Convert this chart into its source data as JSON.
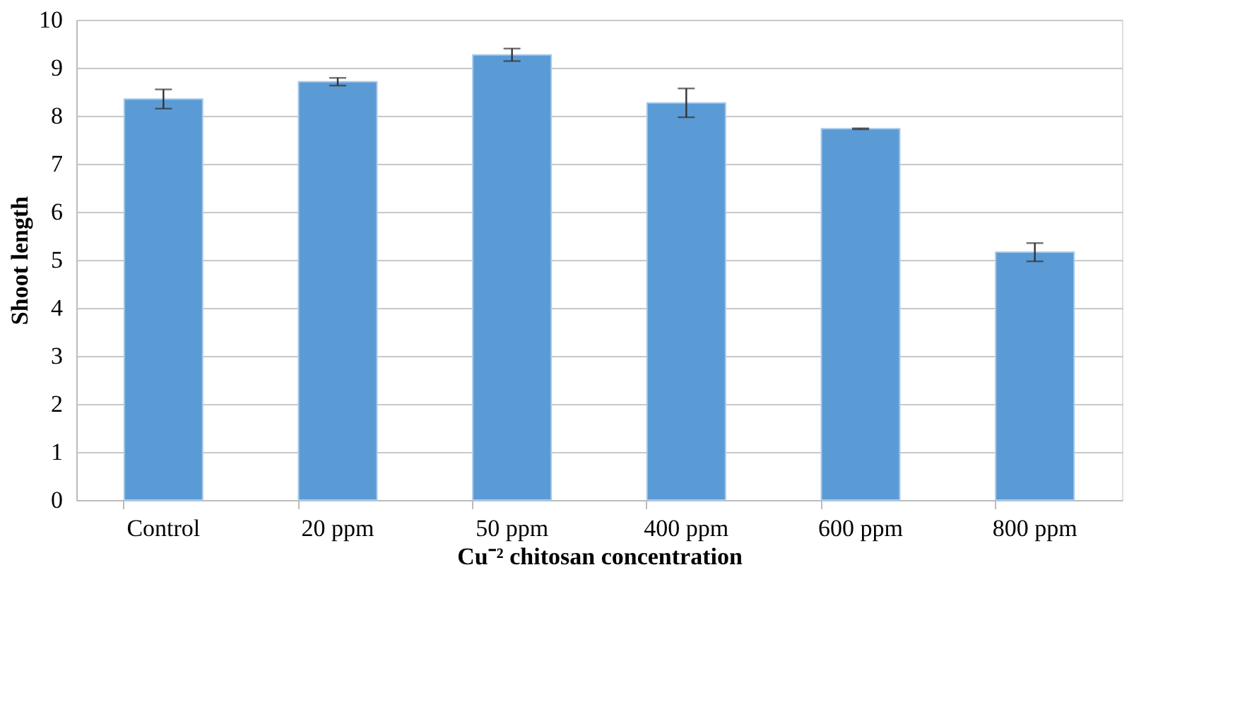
{
  "chart_data": {
    "type": "bar",
    "xlabel": "Cu⁻² chitosan concentration",
    "ylabel": "Shoot length",
    "categories": [
      "Control",
      "20 ppm",
      "50 ppm",
      "400 ppm",
      "600 ppm",
      "800 ppm"
    ],
    "values": [
      8.35,
      8.71,
      9.27,
      8.27,
      7.73,
      5.16
    ],
    "errors": [
      0.2,
      0.08,
      0.13,
      0.3,
      0.01,
      0.19
    ],
    "color": "#5b9bd5",
    "ylim": [
      0,
      10
    ],
    "yticks": [
      0,
      1,
      2,
      3,
      4,
      5,
      6,
      7,
      8,
      9,
      10
    ],
    "grid": "y"
  }
}
